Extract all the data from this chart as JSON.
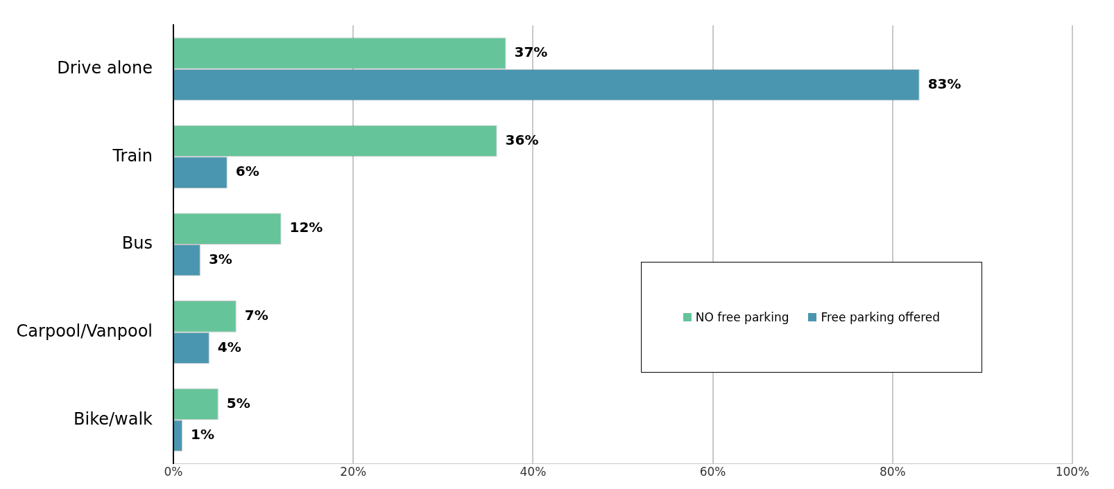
{
  "chart_data": {
    "type": "bar",
    "orientation": "horizontal",
    "categories": [
      "Drive alone",
      "Train",
      "Bus",
      "Carpool/Vanpool",
      "Bike/walk"
    ],
    "series": [
      {
        "name": "NO free parking",
        "color": "#66c49a",
        "values": [
          37,
          36,
          12,
          7,
          5
        ],
        "value_labels": [
          "37%",
          "36%",
          "12%",
          "7%",
          "5%"
        ]
      },
      {
        "name": "Free parking offered",
        "color": "#4a96b0",
        "values": [
          83,
          6,
          3,
          4,
          1
        ],
        "value_labels": [
          "83%",
          "6%",
          "3%",
          "4%",
          "1%"
        ]
      }
    ],
    "xlim": [
      0,
      100
    ],
    "xticks": [
      {
        "value": 0,
        "label": "0%"
      },
      {
        "value": 20,
        "label": "20%"
      },
      {
        "value": 40,
        "label": "40%"
      },
      {
        "value": 60,
        "label": "60%"
      },
      {
        "value": 80,
        "label": "80%"
      },
      {
        "value": 100,
        "label": "100%"
      }
    ],
    "grid": "x",
    "legend": "right"
  }
}
